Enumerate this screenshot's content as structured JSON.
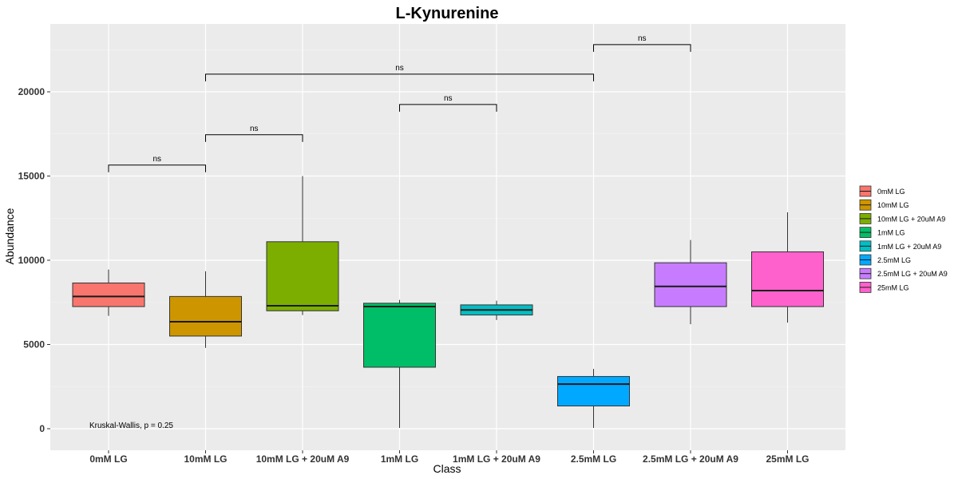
{
  "chart_data": {
    "type": "box",
    "title": "L-Kynurenine",
    "xlabel": "Class",
    "ylabel": "Abundance",
    "ylim": [
      -1000,
      23800
    ],
    "yticks": [
      0,
      5000,
      10000,
      15000,
      20000
    ],
    "ytick_labels": [
      "0",
      "5000",
      "10000",
      "15000",
      "20000"
    ],
    "categories": [
      "0mM LG",
      "10mM LG",
      "10mM LG + 20uM A9",
      "1mM LG",
      "1mM LG + 20uM A9",
      "2.5mM LG",
      "2.5mM LG + 20uM A9",
      "25mM LG"
    ],
    "series": [
      {
        "name": "0mM LG",
        "color": "#F8766D",
        "min": 6700,
        "q1": 7250,
        "median": 7850,
        "q3": 8650,
        "max": 9450
      },
      {
        "name": "10mM LG",
        "color": "#CD9600",
        "min": 4800,
        "q1": 5500,
        "median": 6350,
        "q3": 7850,
        "max": 9350
      },
      {
        "name": "10mM LG + 20uM A9",
        "color": "#7CAE00",
        "min": 6750,
        "q1": 7000,
        "median": 7300,
        "q3": 11100,
        "max": 15000
      },
      {
        "name": "1mM LG",
        "color": "#00BE67",
        "min": 50,
        "q1": 3650,
        "median": 7250,
        "q3": 7450,
        "max": 7650
      },
      {
        "name": "1mM LG + 20uM A9",
        "color": "#00BFC4",
        "min": 6450,
        "q1": 6750,
        "median": 7050,
        "q3": 7350,
        "max": 7600
      },
      {
        "name": "2.5mM LG",
        "color": "#00A9FF",
        "min": 50,
        "q1": 1350,
        "median": 2650,
        "q3": 3100,
        "max": 3550
      },
      {
        "name": "2.5mM LG + 20uM A9",
        "color": "#C77CFF",
        "min": 6200,
        "q1": 7250,
        "median": 8450,
        "q3": 9850,
        "max": 11200
      },
      {
        "name": "25mM LG",
        "color": "#FF61CC",
        "min": 6300,
        "q1": 7250,
        "median": 8200,
        "q3": 10500,
        "max": 12850
      }
    ],
    "comparisons": [
      {
        "from": 0,
        "to": 1,
        "y": 15650,
        "label": "ns"
      },
      {
        "from": 1,
        "to": 2,
        "y": 17450,
        "label": "ns"
      },
      {
        "from": 3,
        "to": 4,
        "y": 19250,
        "label": "ns"
      },
      {
        "from": 1,
        "to": 5,
        "y": 21050,
        "label": "ns"
      },
      {
        "from": 5,
        "to": 6,
        "y": 22800,
        "label": "ns"
      }
    ],
    "annotation": {
      "text": "Kruskal-Wallis, p = 0.25",
      "x_category": 0,
      "y": 200
    },
    "legend_position": "right",
    "grid": true
  }
}
